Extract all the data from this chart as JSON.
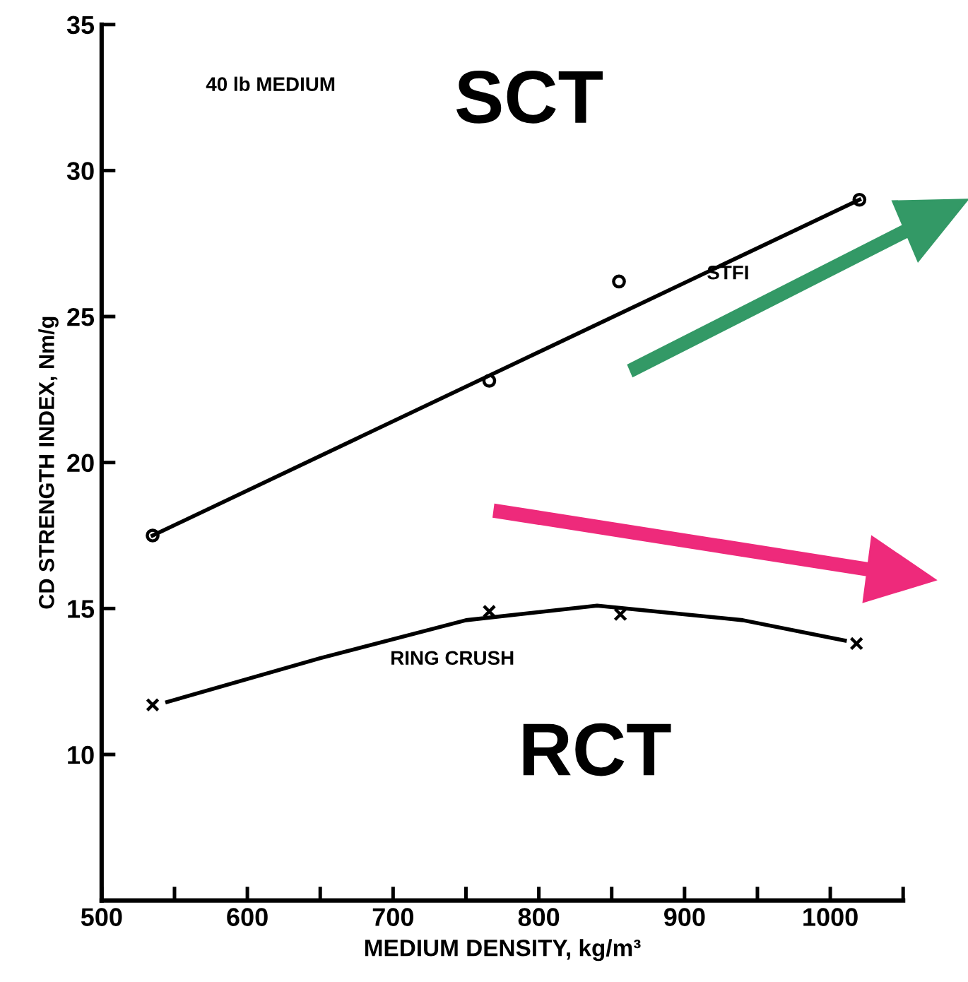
{
  "chart_data": {
    "type": "line",
    "xlabel": "MEDIUM DENSITY, kg/m³",
    "ylabel": "CD STRENGTH INDEX, Nm/g",
    "xlim": [
      500,
      1050
    ],
    "ylim": [
      5,
      35
    ],
    "xticks": [
      500,
      {
        "value": 550,
        "label": null
      },
      600,
      {
        "value": 650,
        "label": null
      },
      700,
      {
        "value": 750,
        "label": null
      },
      800,
      {
        "value": 850,
        "label": null
      },
      900,
      {
        "value": 950,
        "label": null
      },
      1000,
      {
        "value": 1050,
        "label": null
      }
    ],
    "yticks": [
      10,
      15,
      20,
      25,
      30,
      35
    ],
    "grid": false,
    "legend": false,
    "series": [
      {
        "type": "scatter",
        "marker": "circle",
        "color": "#000000",
        "x": [
          535,
          766,
          855,
          1020
        ],
        "values": [
          17.5,
          22.8,
          26.2,
          29.0
        ]
      },
      {
        "marker": "none",
        "line_style": "solid",
        "color": "#000000",
        "x": [
          535,
          1020
        ],
        "values": [
          17.5,
          29.0
        ]
      },
      {
        "type": "scatter",
        "marker": "cross",
        "color": "#000000",
        "x": [
          535,
          766,
          856,
          1018
        ],
        "values": [
          11.7,
          14.9,
          14.8,
          13.8
        ]
      },
      {
        "marker": "none",
        "line_style": "solid",
        "color": "#000000",
        "x": [
          545,
          650,
          750,
          840,
          940,
          1010
        ],
        "values": [
          11.8,
          13.3,
          14.6,
          15.1,
          14.6,
          13.9
        ]
      }
    ],
    "annotations": [
      "40 lb MEDIUM",
      "SCT",
      "STFI",
      "RING CRUSH",
      "RCT"
    ]
  }
}
